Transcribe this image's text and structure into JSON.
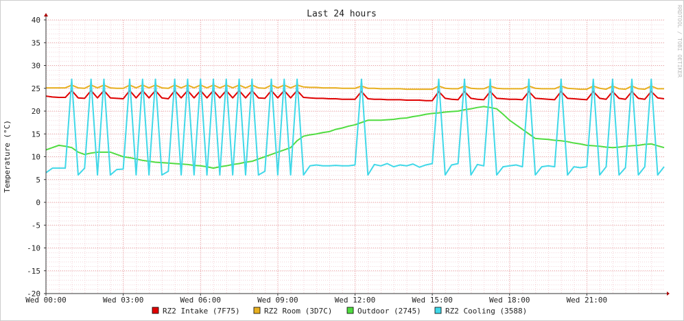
{
  "chart_data": {
    "type": "line",
    "title": "Last 24 hours",
    "ylabel": "Temperature (°C)",
    "watermark": "RRDTOOL / TOBI OETIKER",
    "xlim": [
      0,
      24
    ],
    "ylim": [
      -20,
      40
    ],
    "grid": true,
    "yticks": [
      -20,
      -15,
      -10,
      -5,
      0,
      5,
      10,
      15,
      20,
      25,
      30,
      35,
      40
    ],
    "xticks": [
      {
        "value": 0,
        "label": "Wed 00:00"
      },
      {
        "value": 3,
        "label": "Wed 03:00"
      },
      {
        "value": 6,
        "label": "Wed 06:00"
      },
      {
        "value": 9,
        "label": "Wed 09:00"
      },
      {
        "value": 12,
        "label": "Wed 12:00"
      },
      {
        "value": 15,
        "label": "Wed 15:00"
      },
      {
        "value": 18,
        "label": "Wed 18:00"
      },
      {
        "value": 21,
        "label": "Wed 21:00"
      }
    ],
    "x": [
      0,
      0.25,
      0.5,
      0.75,
      1,
      1.25,
      1.5,
      1.75,
      2,
      2.25,
      2.5,
      2.75,
      3,
      3.25,
      3.5,
      3.75,
      4,
      4.25,
      4.5,
      4.75,
      5,
      5.25,
      5.5,
      5.75,
      6,
      6.25,
      6.5,
      6.75,
      7,
      7.25,
      7.5,
      7.75,
      8,
      8.25,
      8.5,
      8.75,
      9,
      9.25,
      9.5,
      9.75,
      10,
      10.25,
      10.5,
      10.75,
      11,
      11.25,
      11.5,
      11.75,
      12,
      12.25,
      12.5,
      12.75,
      13,
      13.25,
      13.5,
      13.75,
      14,
      14.25,
      14.5,
      14.75,
      15,
      15.25,
      15.5,
      15.75,
      16,
      16.25,
      16.5,
      16.75,
      17,
      17.25,
      17.5,
      17.75,
      18,
      18.25,
      18.5,
      18.75,
      19,
      19.25,
      19.5,
      19.75,
      20,
      20.25,
      20.5,
      20.75,
      21,
      21.25,
      21.5,
      21.75,
      22,
      22.25,
      22.5,
      22.75,
      23,
      23.25,
      23.5,
      23.75,
      24
    ],
    "series": [
      {
        "name": "RZ2 Intake (7F75)",
        "color": "#e00000",
        "values": [
          23.3,
          23.1,
          23,
          23,
          24.5,
          22.9,
          22.8,
          24.5,
          22.9,
          24.5,
          22.9,
          22.8,
          22.7,
          24.5,
          22.9,
          24.5,
          22.9,
          24.5,
          22.9,
          22.7,
          24.5,
          22.9,
          24.5,
          22.9,
          24.5,
          22.9,
          24.5,
          22.9,
          24.5,
          22.9,
          24.5,
          22.9,
          24.5,
          22.9,
          22.8,
          24.5,
          22.9,
          24.5,
          22.9,
          24.5,
          23,
          22.9,
          22.8,
          22.8,
          22.7,
          22.7,
          22.6,
          22.6,
          22.6,
          24.3,
          22.7,
          22.6,
          22.6,
          22.5,
          22.5,
          22.5,
          22.4,
          22.4,
          22.4,
          22.3,
          22.3,
          24.3,
          22.8,
          22.6,
          22.5,
          24.3,
          22.8,
          22.6,
          22.5,
          24.3,
          22.8,
          22.7,
          22.6,
          22.6,
          22.5,
          24.3,
          22.8,
          22.7,
          22.6,
          22.5,
          24.3,
          22.8,
          22.7,
          22.6,
          22.5,
          24.3,
          22.8,
          22.6,
          24.3,
          22.8,
          22.6,
          24.3,
          22.8,
          22.6,
          24.3,
          22.9,
          22.7
        ]
      },
      {
        "name": "RZ2 Room (3D7C)",
        "color": "#e8b020",
        "values": [
          25.1,
          25.1,
          25.1,
          25.1,
          25.7,
          25.1,
          25,
          25.7,
          25.1,
          25.7,
          25.1,
          25,
          25,
          25.7,
          25.1,
          25.7,
          25.1,
          25.7,
          25.1,
          25,
          25.7,
          25.1,
          25.7,
          25.1,
          25.7,
          25.1,
          25.7,
          25.1,
          25.7,
          25.1,
          25.7,
          25.1,
          25.7,
          25.1,
          25,
          25.7,
          25.1,
          25.7,
          25.1,
          25.7,
          25.3,
          25.2,
          25.2,
          25.1,
          25.1,
          25.1,
          25,
          25,
          25,
          25.5,
          25,
          25,
          24.9,
          24.9,
          24.9,
          24.9,
          24.8,
          24.8,
          24.8,
          24.8,
          24.8,
          25.5,
          25,
          24.9,
          24.9,
          25.5,
          25,
          24.9,
          24.9,
          25.5,
          25,
          24.9,
          24.9,
          24.9,
          24.9,
          25.5,
          25,
          24.9,
          24.9,
          24.9,
          25.5,
          25,
          24.9,
          24.8,
          24.8,
          25.5,
          25,
          24.8,
          25.5,
          24.9,
          24.8,
          25.5,
          24.9,
          24.8,
          25.5,
          24.9,
          24.9
        ]
      },
      {
        "name": "Outdoor (2745)",
        "color": "#50dc40",
        "values": [
          11.5,
          12,
          12.5,
          12.3,
          12,
          11,
          10.5,
          10.8,
          11,
          11,
          11,
          10.5,
          10,
          9.8,
          9.5,
          9.2,
          9,
          8.8,
          8.7,
          8.6,
          8.5,
          8.4,
          8.3,
          8.1,
          8,
          7.8,
          7.5,
          7.8,
          8,
          8.3,
          8.5,
          8.8,
          9,
          9.5,
          10,
          10.5,
          11,
          11.5,
          12,
          13.5,
          14.5,
          14.8,
          15,
          15.3,
          15.5,
          16,
          16.3,
          16.7,
          17,
          17.5,
          18,
          18,
          18,
          18.1,
          18.2,
          18.4,
          18.5,
          18.8,
          19,
          19.3,
          19.5,
          19.6,
          19.8,
          19.9,
          20,
          20.3,
          20.5,
          20.8,
          21,
          20.8,
          20.5,
          19.3,
          18,
          17,
          16,
          15,
          14,
          13.9,
          13.8,
          13.6,
          13.5,
          13.3,
          13,
          12.8,
          12.5,
          12.4,
          12.3,
          12.1,
          12,
          12.1,
          12.3,
          12.4,
          12.5,
          12.7,
          12.8,
          12.4,
          12
        ]
      },
      {
        "name": "RZ2 Cooling (3588)",
        "color": "#40d8e8",
        "values": [
          6.5,
          7.5,
          7.5,
          7.5,
          27,
          6,
          7.5,
          27,
          6,
          27,
          6,
          7.2,
          7.3,
          27,
          6,
          27,
          6,
          27,
          6,
          6.8,
          27,
          6,
          27,
          6,
          27,
          6,
          27,
          6,
          27,
          6,
          27,
          6,
          27,
          6,
          6.8,
          27,
          6,
          27,
          6,
          27,
          6,
          8,
          8.2,
          8,
          8,
          8.1,
          8,
          8,
          8.2,
          27,
          6,
          8.3,
          8,
          8.5,
          7.8,
          8.2,
          8,
          8.4,
          7.7,
          8.2,
          8.5,
          27,
          6,
          8.2,
          8.5,
          27,
          6,
          8.3,
          8,
          27,
          6,
          7.8,
          8,
          8.2,
          7.8,
          27,
          6,
          7.8,
          8,
          7.8,
          27,
          6,
          7.8,
          7.6,
          7.8,
          27,
          6,
          7.8,
          27,
          6,
          7.6,
          27,
          6,
          7.8,
          27,
          6,
          7.8
        ]
      }
    ]
  }
}
